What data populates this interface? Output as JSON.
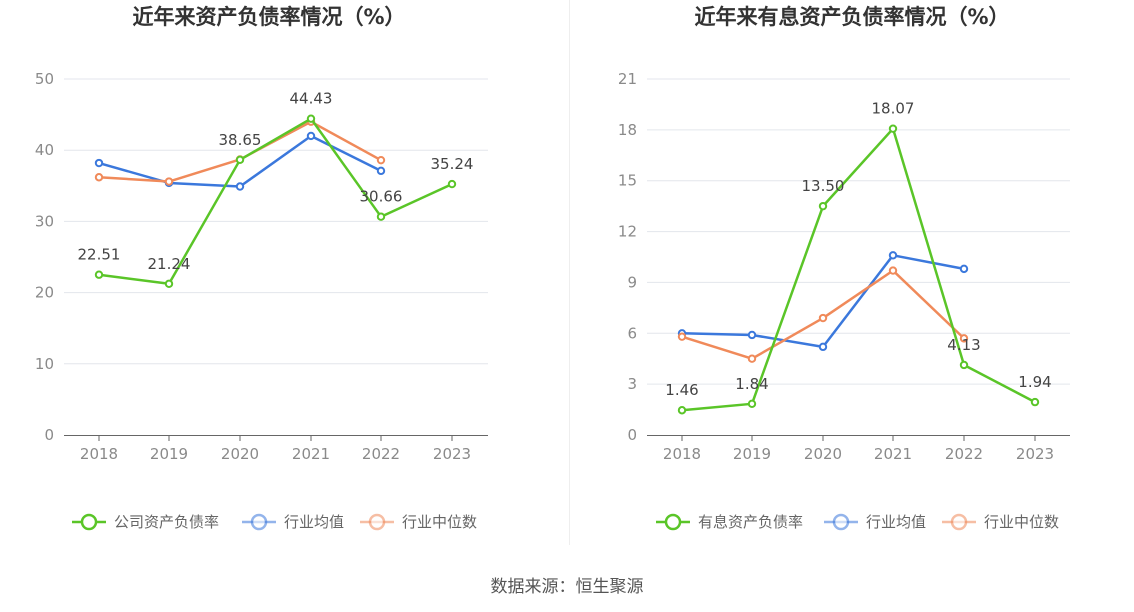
{
  "source": "数据来源：恒生聚源",
  "colors": {
    "company": "#5ac528",
    "industry_avg": "#3b78dc",
    "industry_median": "#f08a5a",
    "grid": "#e3e6ec",
    "axis": "#666666"
  },
  "chart_data": [
    {
      "type": "line",
      "title": "近年来资产负债率情况（%）",
      "categories": [
        "2018",
        "2019",
        "2020",
        "2021",
        "2022",
        "2023"
      ],
      "ylim": [
        0,
        50
      ],
      "yticks": [
        0,
        10,
        20,
        30,
        40,
        50
      ],
      "grid": true,
      "legend_position": "bottom",
      "series": [
        {
          "name": "公司资产负债率",
          "color_key": "company",
          "values": [
            22.51,
            21.24,
            38.65,
            44.43,
            30.66,
            35.24
          ],
          "labels": [
            "22.51",
            "21.24",
            "38.65",
            "44.43",
            "30.66",
            "35.24"
          ]
        },
        {
          "name": "行业均值",
          "color_key": "industry_avg",
          "values": [
            38.2,
            35.4,
            34.9,
            42.0,
            37.1,
            null
          ]
        },
        {
          "name": "行业中位数",
          "color_key": "industry_median",
          "values": [
            36.2,
            35.6,
            38.7,
            44.0,
            38.6,
            null
          ]
        }
      ]
    },
    {
      "type": "line",
      "title": "近年来有息资产负债率情况（%）",
      "categories": [
        "2018",
        "2019",
        "2020",
        "2021",
        "2022",
        "2023"
      ],
      "ylim": [
        0,
        21
      ],
      "yticks": [
        0,
        3,
        6,
        9,
        12,
        15,
        18,
        21
      ],
      "grid": true,
      "legend_position": "bottom",
      "series": [
        {
          "name": "有息资产负债率",
          "color_key": "company",
          "values": [
            1.46,
            1.84,
            13.5,
            18.07,
            4.13,
            1.94
          ],
          "labels": [
            "1.46",
            "1.84",
            "13.50",
            "18.07",
            "4.13",
            "1.94"
          ]
        },
        {
          "name": "行业均值",
          "color_key": "industry_avg",
          "values": [
            6.0,
            5.9,
            5.2,
            10.6,
            9.8,
            null
          ]
        },
        {
          "name": "行业中位数",
          "color_key": "industry_median",
          "values": [
            5.8,
            4.5,
            6.9,
            9.7,
            5.7,
            null
          ]
        }
      ]
    }
  ]
}
